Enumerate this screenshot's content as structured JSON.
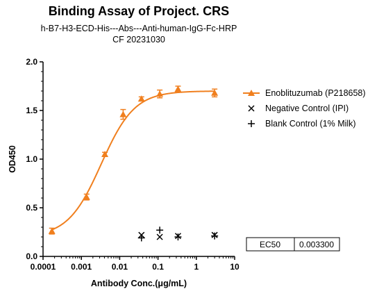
{
  "chart_data": {
    "type": "scatter",
    "title": "Binding Assay of Project. CRS",
    "subtitle_lines": [
      "h-B7-H3-ECD-His---Abs---Anti-human-IgG-Fc-HRP",
      "CF 20231030"
    ],
    "xlabel": "Antibody Conc.(μg/mL)",
    "ylabel": "OD450",
    "x_scale": "log",
    "xlim": [
      0.0001,
      10
    ],
    "ylim": [
      0.0,
      2.0
    ],
    "x_ticks": [
      0.0001,
      0.001,
      0.01,
      0.1,
      1,
      10
    ],
    "x_tick_labels": [
      "0.0001",
      "0.001",
      "0.01",
      "0.1",
      "1",
      "10"
    ],
    "y_ticks": [
      0,
      0.5,
      1.0,
      1.5,
      2.0
    ],
    "y_tick_labels": [
      "0.0",
      "0.5",
      "1.0",
      "1.5",
      "2.0"
    ],
    "grid": false,
    "legend_position": "right",
    "series": [
      {
        "name": "Enoblituzumab (P218658)",
        "marker": "triangle",
        "color": "#f07f1e",
        "x": [
          0.00017,
          0.00137,
          0.0041,
          0.0123,
          0.037,
          0.111,
          0.333,
          3.0
        ],
        "y": [
          0.26,
          0.61,
          1.05,
          1.46,
          1.62,
          1.67,
          1.72,
          1.68
        ],
        "err": [
          0.03,
          0.03,
          0.02,
          0.05,
          0.02,
          0.04,
          0.03,
          0.04
        ],
        "fit": {
          "bottom": 0.2,
          "top": 1.7,
          "ec50": 0.0033,
          "hill": 1.0
        }
      },
      {
        "name": "Negative Control (IPI)",
        "marker": "x",
        "color": "#000000",
        "x": [
          0.037,
          0.111,
          0.333,
          3.0
        ],
        "y": [
          0.22,
          0.2,
          0.21,
          0.22
        ]
      },
      {
        "name": "Blank Control (1% Milk)",
        "marker": "plus",
        "color": "#000000",
        "x": [
          0.037,
          0.111,
          0.333,
          3.0
        ],
        "y": [
          0.19,
          0.27,
          0.2,
          0.21
        ]
      }
    ],
    "ec50_table": {
      "label": "EC50",
      "value": "0.003300"
    }
  }
}
